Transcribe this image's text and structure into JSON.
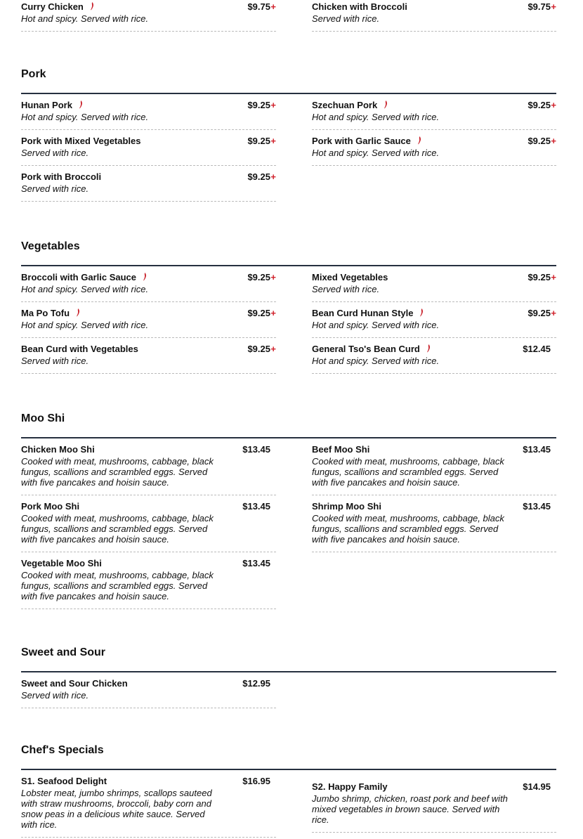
{
  "colors": {
    "accent": "#d0202a",
    "rule": "#26303f"
  },
  "top_partial": {
    "left": [
      {
        "name": "Curry Chicken",
        "spicy": true,
        "price": "$9.75",
        "plus": "+",
        "desc": "Hot and spicy. Served with rice."
      }
    ],
    "right": [
      {
        "name": "Chicken with Broccoli",
        "spicy": false,
        "price": "$9.75",
        "plus": "+",
        "desc": "Served with rice."
      }
    ]
  },
  "sections": [
    {
      "title": "Pork",
      "left": [
        {
          "name": "Hunan Pork",
          "spicy": true,
          "price": "$9.25",
          "plus": "+",
          "desc": "Hot and spicy. Served with rice."
        },
        {
          "name": "Pork with Mixed Vegetables",
          "spicy": false,
          "price": "$9.25",
          "plus": "+",
          "desc": "Served with rice."
        },
        {
          "name": "Pork with Broccoli",
          "spicy": false,
          "price": "$9.25",
          "plus": "+",
          "desc": "Served with rice."
        }
      ],
      "right": [
        {
          "name": "Szechuan Pork",
          "spicy": true,
          "price": "$9.25",
          "plus": "+",
          "desc": "Hot and spicy. Served with rice."
        },
        {
          "name": "Pork with Garlic Sauce",
          "spicy": true,
          "price": "$9.25",
          "plus": "+",
          "desc": "Hot and spicy. Served with rice."
        }
      ]
    },
    {
      "title": "Vegetables",
      "left": [
        {
          "name": "Broccoli with Garlic Sauce",
          "spicy": true,
          "price": "$9.25",
          "plus": "+",
          "desc": "Hot and spicy. Served with rice."
        },
        {
          "name": "Ma Po Tofu",
          "spicy": true,
          "price": "$9.25",
          "plus": "+",
          "desc": "Hot and spicy. Served with rice."
        },
        {
          "name": "Bean Curd with Vegetables",
          "spicy": false,
          "price": "$9.25",
          "plus": "+",
          "desc": "Served with rice."
        }
      ],
      "right": [
        {
          "name": "Mixed Vegetables",
          "spicy": false,
          "price": "$9.25",
          "plus": "+",
          "desc": "Served with rice."
        },
        {
          "name": "Bean Curd Hunan Style",
          "spicy": true,
          "price": "$9.25",
          "plus": "+",
          "desc": "Hot and spicy. Served with rice."
        },
        {
          "name": "General Tso's Bean Curd",
          "spicy": true,
          "price": "$12.45",
          "plus": "",
          "desc": "Hot and spicy. Served with rice."
        }
      ]
    },
    {
      "title": "Moo Shi",
      "left": [
        {
          "name": "Chicken Moo Shi",
          "spicy": false,
          "price": "$13.45",
          "plus": "",
          "desc": "Cooked with meat, mushrooms, cabbage, black fungus, scallions and scrambled eggs. Served with five pancakes and hoisin sauce."
        },
        {
          "name": "Pork Moo Shi",
          "spicy": false,
          "price": "$13.45",
          "plus": "",
          "desc": "Cooked with meat, mushrooms, cabbage, black fungus, scallions and scrambled eggs. Served with five pancakes and hoisin sauce."
        },
        {
          "name": "Vegetable Moo Shi",
          "spicy": false,
          "price": "$13.45",
          "plus": "",
          "desc": "Cooked with meat, mushrooms, cabbage, black fungus, scallions and scrambled eggs. Served with five pancakes and hoisin sauce."
        }
      ],
      "right": [
        {
          "name": "Beef Moo Shi",
          "spicy": false,
          "price": "$13.45",
          "plus": "",
          "desc": "Cooked with meat, mushrooms, cabbage, black fungus, scallions and scrambled eggs. Served with five pancakes and hoisin sauce."
        },
        {
          "name": "Shrimp Moo Shi",
          "spicy": false,
          "price": "$13.45",
          "plus": "",
          "desc": "Cooked with meat, mushrooms, cabbage, black fungus, scallions and scrambled eggs. Served with five pancakes and hoisin sauce."
        }
      ]
    },
    {
      "title": "Sweet and Sour",
      "left": [
        {
          "name": "Sweet and Sour Chicken",
          "spicy": false,
          "price": "$12.95",
          "plus": "",
          "desc": "Served with rice."
        }
      ],
      "right": []
    },
    {
      "title": "Chef's Specials",
      "left": [
        {
          "name": "S1. Seafood Delight",
          "spicy": false,
          "price": "$16.95",
          "plus": "",
          "desc": "Lobster meat, jumbo shrimps, scallops sauteed with straw mushrooms, broccoli, baby corn and snow peas in a delicious white sauce. Served with rice."
        }
      ],
      "right": [
        {
          "name": "S2. Happy Family",
          "spicy": false,
          "price": "$14.95",
          "plus": "",
          "desc": "Jumbo shrimp, chicken, roast pork and beef with mixed vegetables in brown sauce. Served with rice.",
          "offset": true
        }
      ]
    }
  ]
}
